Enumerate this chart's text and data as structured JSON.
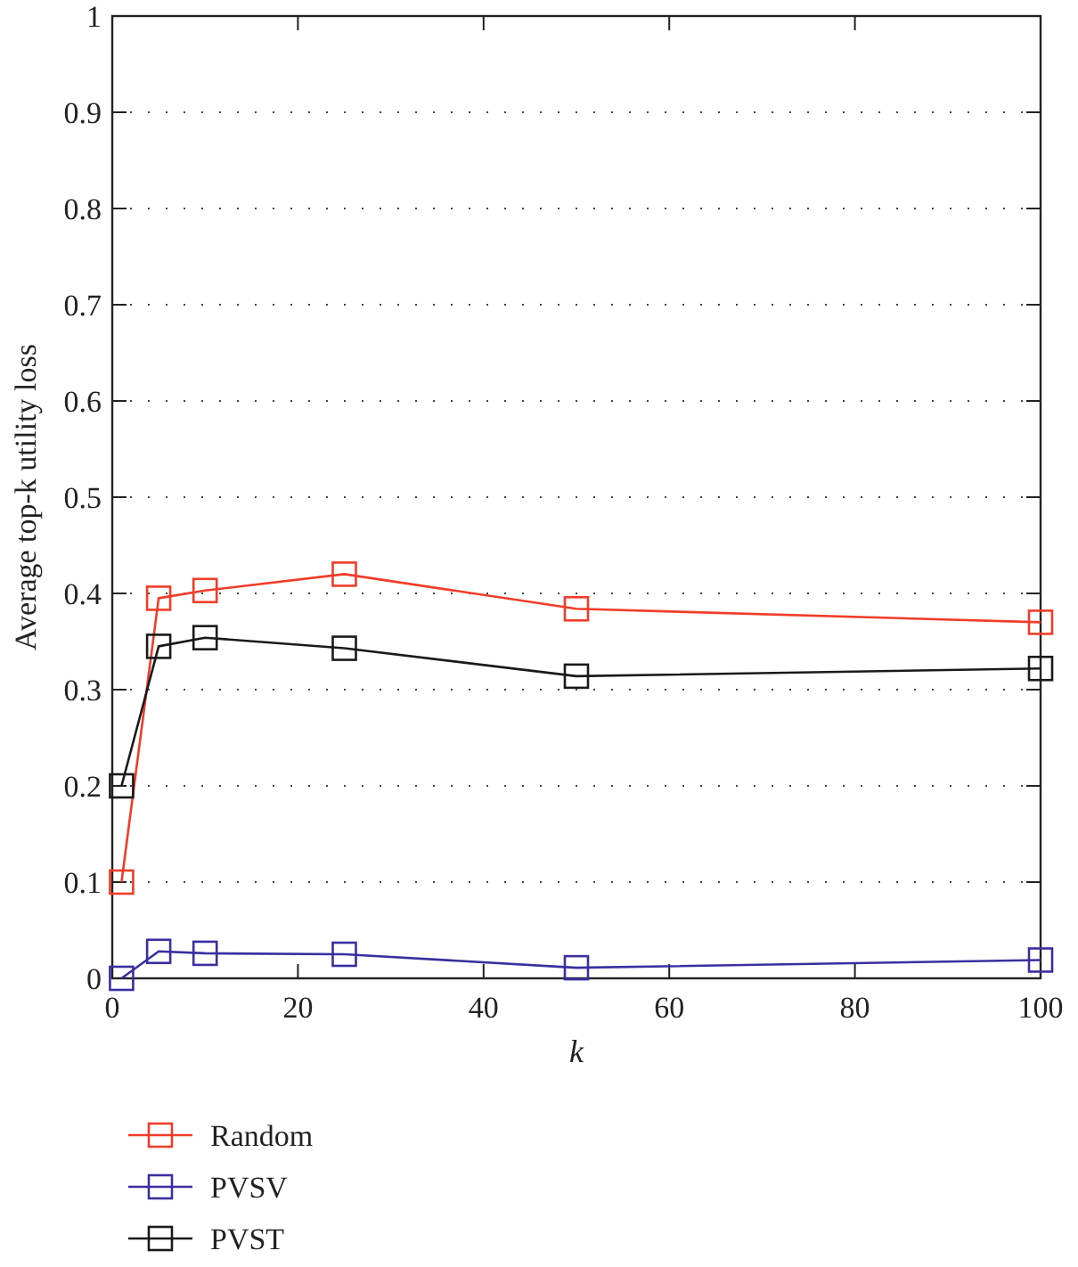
{
  "chart_data": {
    "type": "line",
    "xlabel": "k",
    "ylabel": "Average top-k utility loss",
    "x": [
      1,
      5,
      10,
      25,
      50,
      100
    ],
    "series": [
      {
        "name": "Random",
        "color": "#f03c28",
        "values": [
          0.1,
          0.395,
          0.403,
          0.42,
          0.384,
          0.37
        ]
      },
      {
        "name": "PVSV",
        "color": "#3a2fa0",
        "values": [
          0.0,
          0.028,
          0.026,
          0.025,
          0.011,
          0.019
        ]
      },
      {
        "name": "PVST",
        "color": "#1a1a1a",
        "values": [
          0.2,
          0.345,
          0.354,
          0.343,
          0.314,
          0.322
        ]
      }
    ],
    "xlim": [
      0,
      100
    ],
    "xticks": [
      0,
      20,
      40,
      60,
      80,
      100
    ],
    "ylim": [
      0,
      1
    ],
    "yticks": [
      0,
      0.1,
      0.2,
      0.3,
      0.4,
      0.5,
      0.6,
      0.7,
      0.8,
      0.9,
      1
    ],
    "grid": "y",
    "legend": "bottom",
    "marker": "square",
    "line_style": "solid"
  }
}
